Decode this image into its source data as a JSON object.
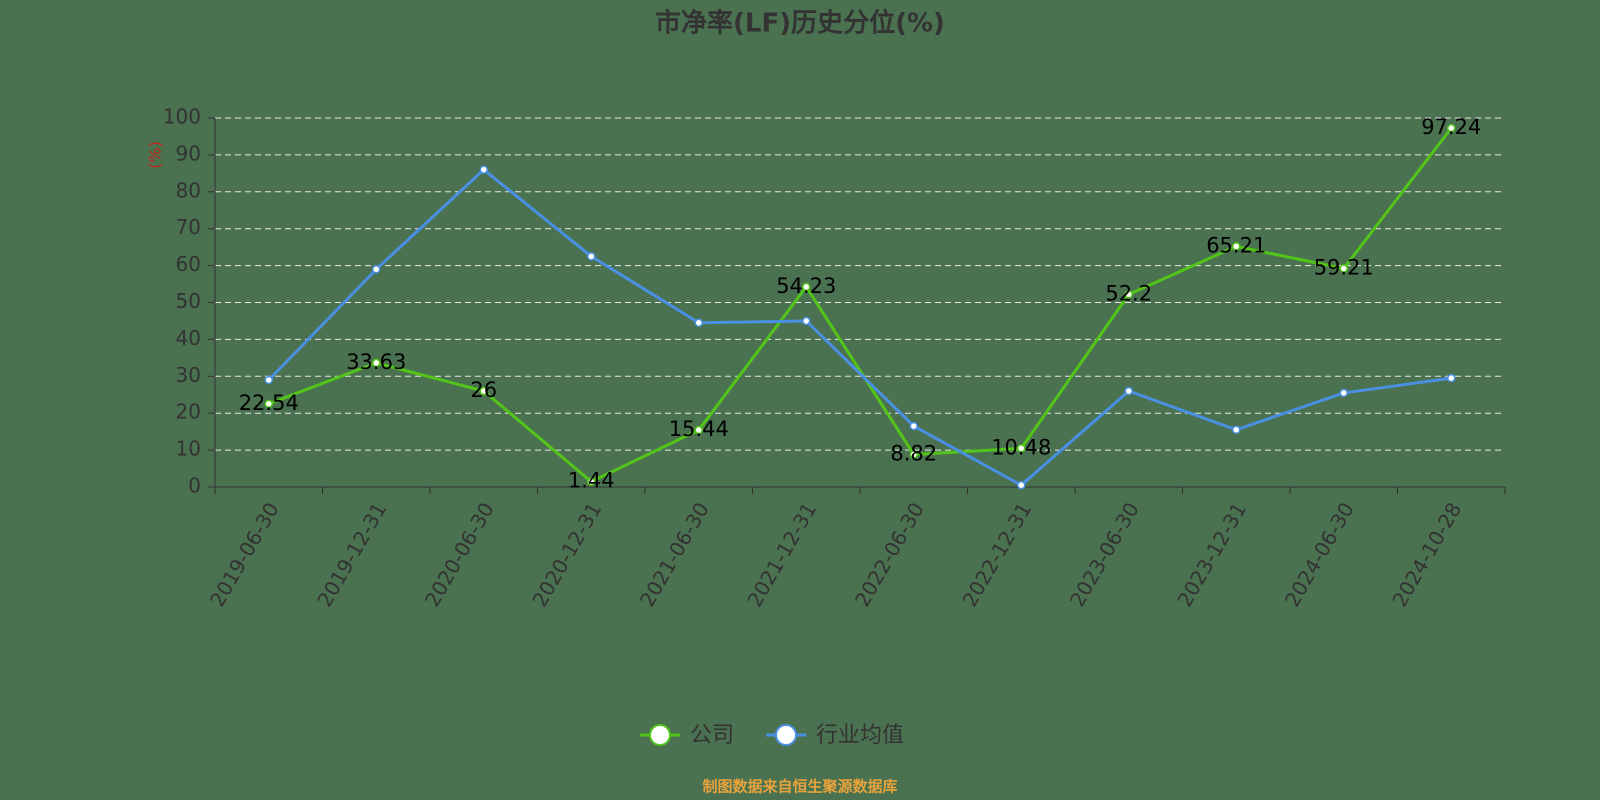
{
  "chart_data": {
    "type": "line",
    "title": "市净率(LF)历史分位(%)",
    "y_label": "(%)",
    "footer": "制图数据来自恒生聚源数据库",
    "categories": [
      "2019-06-30",
      "2019-12-31",
      "2020-06-30",
      "2020-12-31",
      "2021-06-30",
      "2021-12-31",
      "2022-06-30",
      "2022-12-31",
      "2023-06-30",
      "2023-12-31",
      "2024-06-30",
      "2024-10-28"
    ],
    "series": [
      {
        "name": "公司",
        "color": "#52c41a",
        "labels": true,
        "values": [
          22.54,
          33.63,
          26,
          1.44,
          15.44,
          54.23,
          8.82,
          10.48,
          52.2,
          65.21,
          59.21,
          97.24
        ]
      },
      {
        "name": "行业均值",
        "color": "#4a90e2",
        "labels": false,
        "values": [
          29,
          59,
          86,
          62.5,
          44.5,
          45,
          16.5,
          0.5,
          26,
          15.5,
          25.5,
          29.5
        ]
      }
    ],
    "ylim": [
      0,
      100
    ],
    "yticks": [
      0,
      10,
      20,
      30,
      40,
      50,
      60,
      70,
      80,
      90,
      100
    ],
    "grid": true
  }
}
